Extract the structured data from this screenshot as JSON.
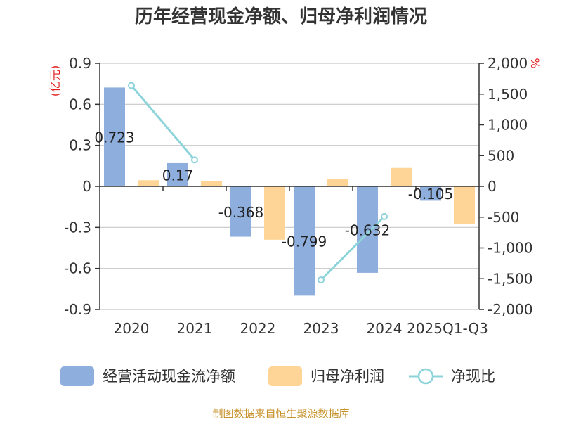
{
  "colors": {
    "bar_cash": "#8eaedd",
    "bar_profit": "#fed597",
    "line": "#8dd3da",
    "unit": "#e02020",
    "source": "#c8922a",
    "grid": "#c8c8c8",
    "axis": "#333333"
  },
  "chart_data": {
    "type": "bar",
    "title": "历年经营现金净额、归母净利润情况",
    "categories": [
      "2020",
      "2021",
      "2022",
      "2023",
      "2024",
      "2025Q1-Q3"
    ],
    "series": [
      {
        "name": "经营活动现金流净额",
        "axis": "left",
        "values": [
          0.723,
          0.17,
          -0.368,
          -0.799,
          -0.632,
          -0.105
        ],
        "labels": [
          "0.723",
          "0.17",
          "-0.368",
          "-0.799",
          "-0.632",
          "-0.105"
        ]
      },
      {
        "name": "归母净利润",
        "axis": "left",
        "values": [
          0.045,
          0.04,
          -0.39,
          0.055,
          0.135,
          -0.275
        ]
      },
      {
        "name": "净现比",
        "type": "line",
        "axis": "right",
        "values": [
          1640,
          430,
          null,
          -1520,
          -490,
          null
        ]
      }
    ],
    "y_left": {
      "unit": "(亿元)",
      "range": [
        -0.9,
        0.9
      ],
      "ticks": [
        "0.9",
        "0.6",
        "0.3",
        "0",
        "-0.3",
        "-0.6",
        "-0.9"
      ]
    },
    "y_right": {
      "unit": "%",
      "range": [
        -2000,
        2000
      ],
      "ticks": [
        "2,000",
        "1,500",
        "1,000",
        "500",
        "0",
        "-500",
        "-1,000",
        "-1,500",
        "-2,000"
      ]
    },
    "grid": true,
    "legend_position": "bottom"
  },
  "legend": [
    {
      "label": "经营活动现金流净额"
    },
    {
      "label": "归母净利润"
    },
    {
      "label": "净现比"
    }
  ],
  "source": "制图数据来自恒生聚源数据库"
}
